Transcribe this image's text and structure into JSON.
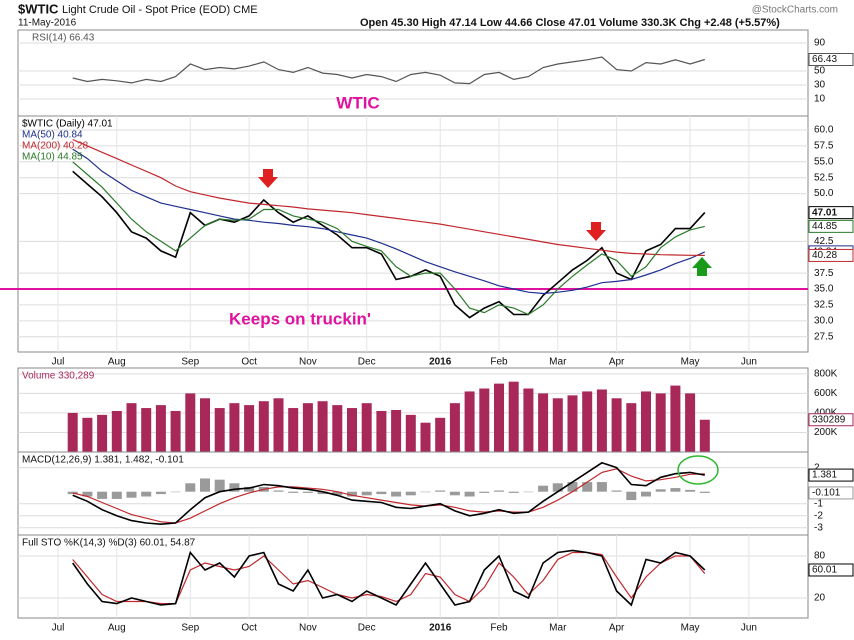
{
  "header": {
    "symbol": "$WTIC",
    "name": "Light Crude Oil - Spot Price (EOD) CME",
    "date": "11-May-2016",
    "quote": "Open 45.30 High 47.14 Low 44.66 Close 47.01 Volume 330.3K Chg +2.48 (+5.57%)",
    "credit": "@StockCharts.com"
  },
  "chart_data": [
    {
      "type": "line",
      "annotations": [
        "WTIC"
      ],
      "ylim": [
        -14.3,
        108.6
      ],
      "yticks": [
        90,
        50,
        30,
        10
      ],
      "series": [
        {
          "name": "RSI(14) 66.43",
          "color": "#555555",
          "value_box": true,
          "values": [
            null,
            40,
            35,
            38,
            36,
            33,
            38,
            35,
            42,
            60,
            52,
            55,
            53,
            57,
            63,
            52,
            48,
            55,
            47,
            45,
            40,
            45,
            42,
            35,
            45,
            48,
            44,
            33,
            32,
            45,
            48,
            38,
            42,
            55,
            60,
            63,
            66,
            70,
            52,
            50,
            62,
            60,
            66,
            60,
            66.43,
            null,
            null,
            null
          ]
        }
      ]
    },
    {
      "type": "line",
      "annotations": [
        "Keeps on truckin'"
      ],
      "hline": 35,
      "hline_color": "#e0119f",
      "ylim": [
        25.1,
        62.2
      ],
      "yticks": [
        {
          "value": 60,
          "label": "60.0"
        },
        57.5,
        {
          "value": 55,
          "label": "55.0"
        },
        52.5,
        {
          "value": 50,
          "label": "50.0"
        },
        42.5,
        37.5,
        {
          "value": 35,
          "label": "35.0"
        },
        32.5,
        {
          "value": 30,
          "label": "30.0"
        },
        27.5
      ],
      "categories": [
        "Jul",
        null,
        null,
        null,
        "Aug",
        null,
        null,
        null,
        null,
        "Sep",
        null,
        null,
        null,
        "Oct",
        null,
        null,
        null,
        "Nov",
        null,
        null,
        null,
        "Dec",
        null,
        null,
        null,
        null,
        "2016",
        null,
        null,
        null,
        "Feb",
        null,
        null,
        null,
        "Mar",
        null,
        null,
        null,
        "Apr",
        null,
        null,
        null,
        null,
        "May",
        null,
        null,
        null,
        "Jun"
      ],
      "series": [
        {
          "name": "$WTIC (Daily) 47.01",
          "color": "#000000",
          "value_box": true,
          "values": [
            null,
            53.5,
            51.5,
            49.5,
            47,
            44,
            43,
            41,
            40,
            47,
            45,
            46,
            45.5,
            46.5,
            49,
            47,
            45.5,
            46.5,
            45,
            43.5,
            41.5,
            41.5,
            40.5,
            36.5,
            37,
            38,
            37,
            32.5,
            30.5,
            32,
            33,
            31,
            31,
            34,
            36,
            38,
            39.5,
            41.5,
            37.5,
            36.5,
            41,
            42,
            44.5,
            44.5,
            47.01,
            null,
            null,
            null
          ]
        },
        {
          "name": "MA(50) 40.84",
          "color": "#1f2f8f",
          "value_box": true,
          "values": [
            null,
            57,
            55.5,
            53.5,
            52,
            50.5,
            49.5,
            48.5,
            48,
            47.5,
            47,
            46.5,
            46,
            45.8,
            45.5,
            45.3,
            45,
            44.8,
            44.5,
            44,
            43.5,
            43,
            42.2,
            41.3,
            40.3,
            39.3,
            38.5,
            37.7,
            37,
            36.3,
            35.5,
            35,
            34.5,
            34.3,
            34.5,
            34.8,
            35.3,
            36,
            36.2,
            36.5,
            37.2,
            38,
            39,
            39.8,
            40.84,
            null,
            null,
            null
          ]
        },
        {
          "name": "MA(200) 40.28",
          "color": "#c0282d",
          "value_box": true,
          "values": [
            null,
            58.5,
            57.5,
            56.5,
            55.5,
            54.5,
            53.5,
            52.5,
            51.2,
            50.3,
            49.8,
            49.3,
            48.9,
            48.5,
            48.3,
            48.1,
            47.9,
            47.6,
            47.4,
            47.2,
            47,
            46.7,
            46.4,
            46.1,
            45.8,
            45.5,
            45.2,
            44.8,
            44.4,
            44,
            43.6,
            43.2,
            42.8,
            42.4,
            42,
            41.7,
            41.4,
            41.1,
            40.8,
            40.6,
            40.5,
            40.4,
            40.35,
            40.3,
            40.28,
            null,
            null,
            null
          ]
        },
        {
          "name": "MA(10) 44.85",
          "color": "#2a7a2a",
          "value_box": true,
          "values": [
            null,
            55,
            53,
            51,
            48.5,
            46,
            44,
            42.5,
            41,
            43,
            45,
            46,
            45.8,
            46,
            47.5,
            47.5,
            46.5,
            46,
            45.5,
            44.5,
            42.5,
            41.7,
            41,
            38.5,
            37,
            37.5,
            37.5,
            35,
            32,
            31.3,
            32.5,
            32,
            31,
            32.5,
            35,
            37,
            38.8,
            40.5,
            39.5,
            37,
            38.5,
            41.5,
            43.2,
            44.3,
            44.85,
            null,
            null,
            null
          ]
        }
      ]
    },
    {
      "type": "bar",
      "ylim": [
        0,
        860000
      ],
      "yticks": [
        {
          "value": 800000,
          "label": "800K"
        },
        {
          "value": 600000,
          "label": "600K"
        },
        {
          "value": 400000,
          "label": "400K"
        },
        {
          "value": 200000,
          "label": "200K"
        }
      ],
      "series": [
        {
          "name": "Volume 330,289",
          "color": "#a8285a",
          "value_box": true,
          "values": [
            null,
            400000,
            350000,
            380000,
            420000,
            500000,
            450000,
            480000,
            420000,
            600000,
            550000,
            450000,
            500000,
            480000,
            520000,
            550000,
            450000,
            500000,
            520000,
            480000,
            450000,
            500000,
            420000,
            430000,
            380000,
            300000,
            350000,
            500000,
            620000,
            650000,
            700000,
            720000,
            650000,
            600000,
            550000,
            580000,
            620000,
            640000,
            550000,
            500000,
            620000,
            600000,
            680000,
            600000,
            330289,
            null,
            null,
            null
          ]
        }
      ]
    },
    {
      "type": "line",
      "legend": "MACD(12,26,9) 1.381, 1.482, -0.101",
      "ylim": [
        -3.6,
        3.3
      ],
      "yticks": [
        2,
        -1,
        -2,
        -3
      ],
      "series": [
        {
          "type": "bar",
          "color": "#9a9a9a",
          "value_box": true,
          "values": [
            null,
            -0.2,
            -0.4,
            -0.6,
            -0.6,
            -0.5,
            -0.4,
            -0.2,
            0,
            0.7,
            1.1,
            1,
            0.7,
            0.4,
            0.4,
            0.1,
            -0.1,
            -0.1,
            -0.2,
            -0.3,
            -0.4,
            -0.3,
            -0.2,
            -0.4,
            -0.3,
            0,
            0.1,
            -0.3,
            -0.4,
            -0.1,
            0.1,
            -0.1,
            0,
            0.5,
            0.7,
            0.8,
            0.8,
            0.8,
            0.1,
            -0.7,
            -0.4,
            0.2,
            0.3,
            0.15,
            -0.101,
            null,
            null,
            null
          ]
        },
        {
          "color": "#c0282d",
          "values": [
            null,
            -0.1,
            -0.4,
            -0.9,
            -1.4,
            -1.9,
            -2.2,
            -2.5,
            -2.6,
            -2.2,
            -1.6,
            -1,
            -0.5,
            -0.1,
            0.2,
            0.4,
            0.4,
            0.3,
            0.2,
            0,
            -0.3,
            -0.5,
            -0.7,
            -0.9,
            -1.1,
            -1.2,
            -1.1,
            -1.3,
            -1.6,
            -1.7,
            -1.6,
            -1.7,
            -1.7,
            -1.3,
            -0.7,
            0,
            0.8,
            1.6,
            1.9,
            1.3,
            0.9,
            1,
            1.2,
            1.45,
            1.482,
            null,
            null,
            null
          ]
        },
        {
          "color": "#000000",
          "value_box": true,
          "values": [
            null,
            -0.3,
            -0.8,
            -1.5,
            -2,
            -2.4,
            -2.6,
            -2.7,
            -2.6,
            -1.5,
            -0.5,
            0,
            0.2,
            0.3,
            0.6,
            0.5,
            0.3,
            0.2,
            0,
            -0.3,
            -0.7,
            -0.8,
            -0.9,
            -1.3,
            -1.4,
            -1.2,
            -1,
            -1.6,
            -2,
            -1.8,
            -1.5,
            -1.8,
            -1.7,
            -0.8,
            0,
            0.8,
            1.6,
            2.4,
            2,
            0.6,
            0.5,
            1.2,
            1.5,
            1.6,
            1.381,
            null,
            null,
            null
          ]
        }
      ]
    },
    {
      "type": "line",
      "legend": "Full STO %K(14,3) %D(3) 60.01, 54.87",
      "ylim": [
        -8.6,
        110
      ],
      "yticks": [
        80,
        20
      ],
      "categories": [
        "Jul",
        null,
        null,
        null,
        "Aug",
        null,
        null,
        null,
        null,
        "Sep",
        null,
        null,
        null,
        "Oct",
        null,
        null,
        null,
        "Nov",
        null,
        null,
        null,
        "Dec",
        null,
        null,
        null,
        null,
        "2016",
        null,
        null,
        null,
        "Feb",
        null,
        null,
        null,
        "Mar",
        null,
        null,
        null,
        "Apr",
        null,
        null,
        null,
        null,
        "May",
        null,
        null,
        null,
        "Jun"
      ],
      "series": [
        {
          "color": "#c0282d",
          "values": [
            null,
            75,
            50,
            25,
            15,
            15,
            15,
            12,
            12,
            60,
            70,
            65,
            60,
            65,
            80,
            60,
            40,
            45,
            35,
            25,
            20,
            25,
            22,
            15,
            25,
            55,
            50,
            25,
            15,
            35,
            70,
            50,
            25,
            45,
            75,
            85,
            85,
            82,
            50,
            20,
            50,
            70,
            80,
            80,
            54.87,
            null,
            null,
            null
          ]
        },
        {
          "color": "#000000",
          "value_box": true,
          "values": [
            null,
            70,
            40,
            15,
            12,
            20,
            15,
            10,
            12,
            85,
            60,
            70,
            50,
            80,
            85,
            40,
            30,
            60,
            20,
            25,
            15,
            30,
            20,
            10,
            40,
            70,
            40,
            10,
            15,
            60,
            80,
            30,
            20,
            70,
            85,
            88,
            85,
            80,
            30,
            10,
            75,
            70,
            85,
            80,
            60.01,
            null,
            null,
            null
          ]
        }
      ]
    }
  ]
}
